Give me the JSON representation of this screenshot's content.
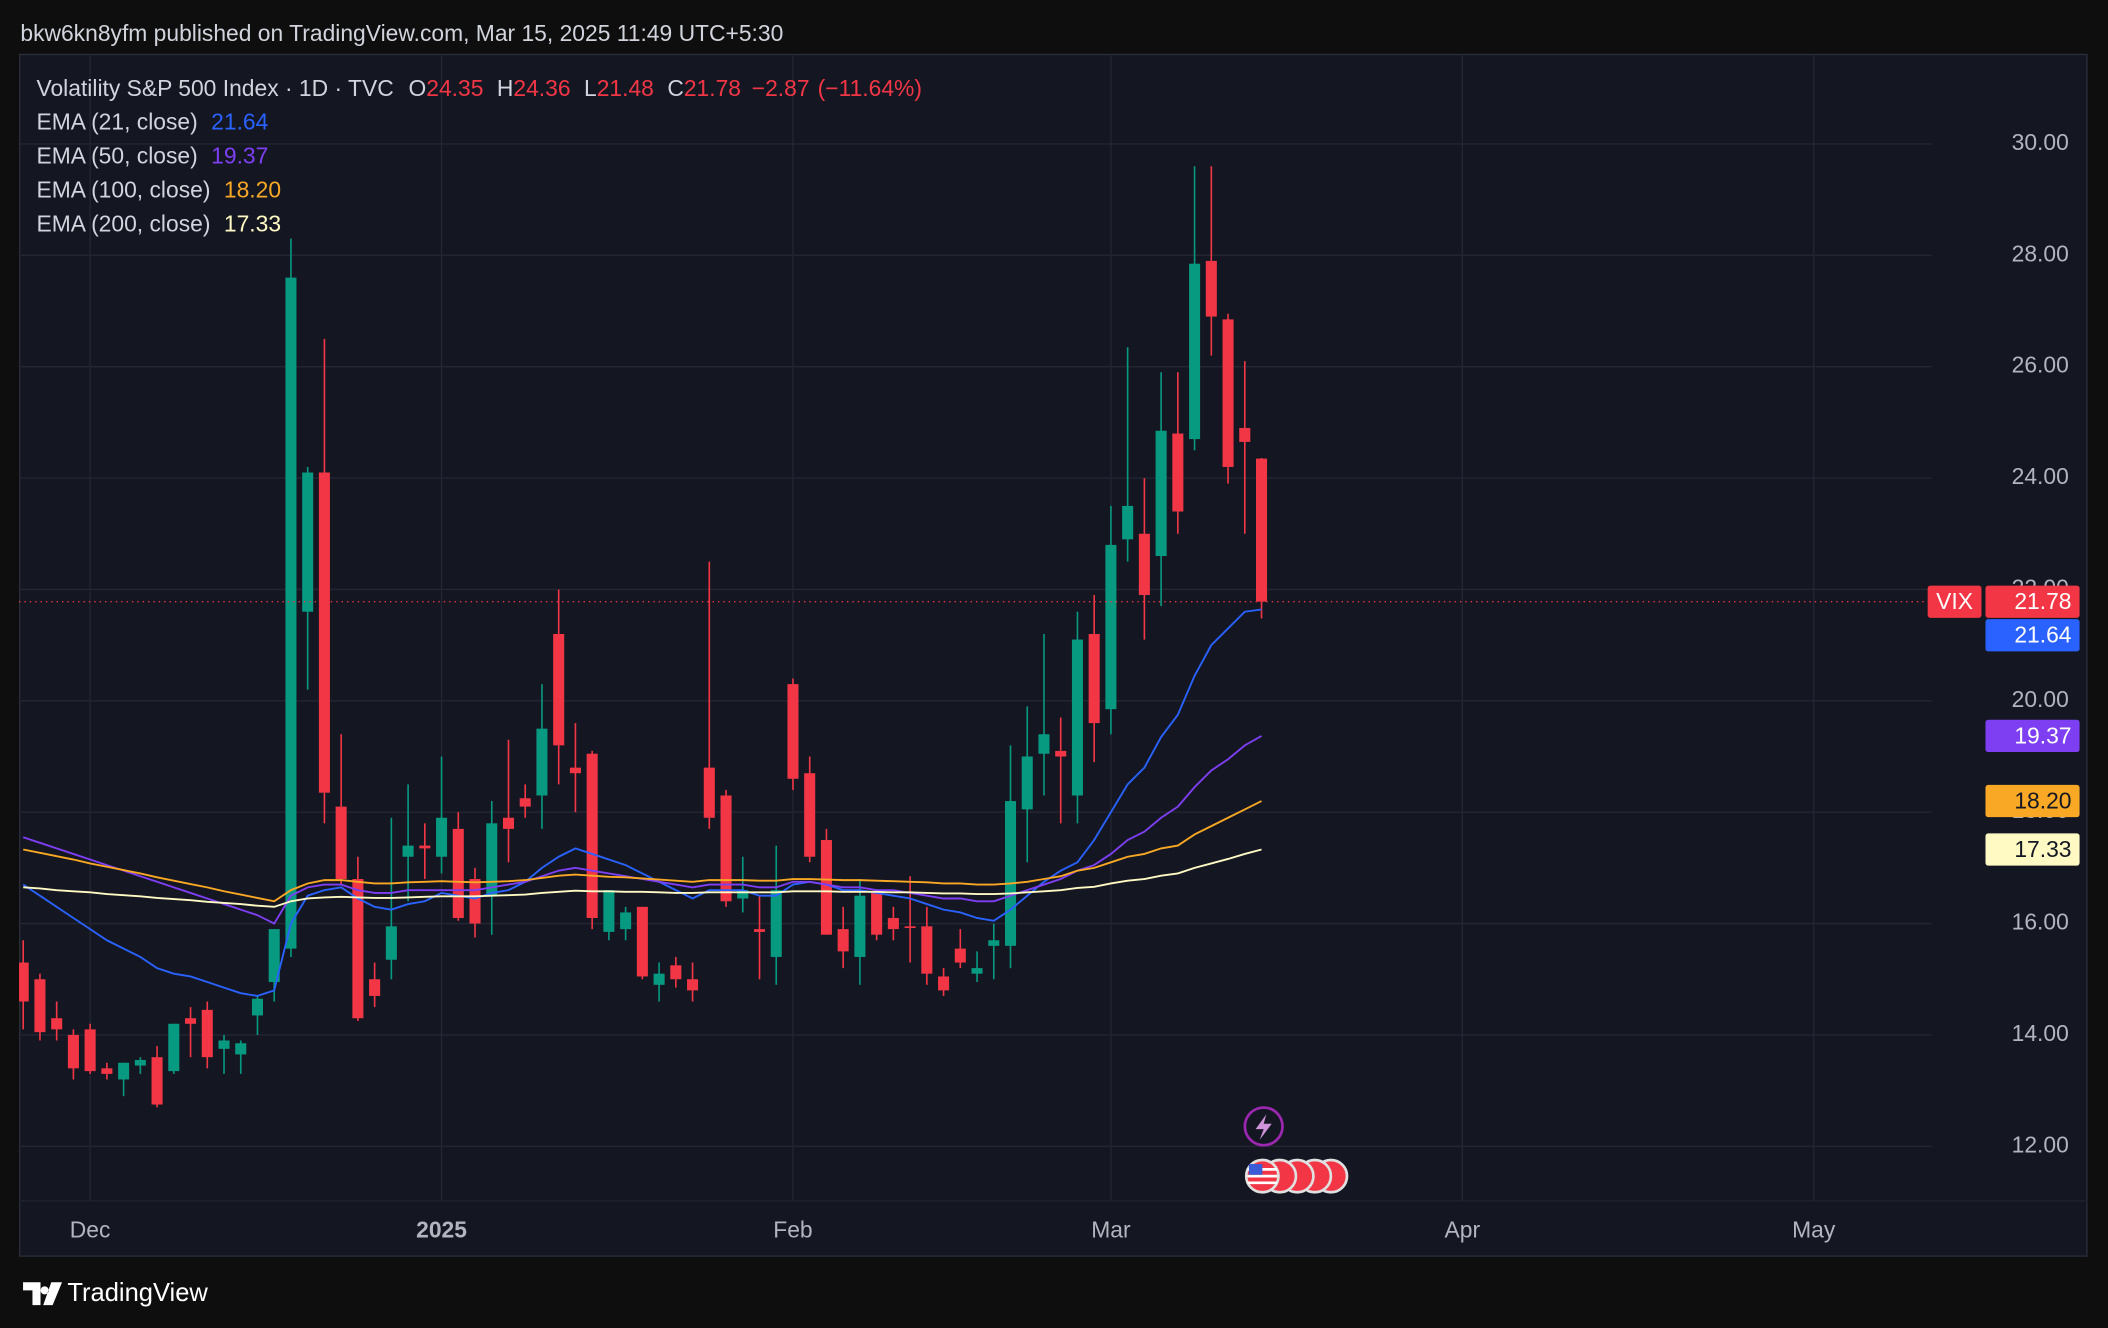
{
  "header": {
    "attribution": "bkw6kn8yfm published on TradingView.com, Mar 15, 2025 11:49 UTC+5:30"
  },
  "footer": {
    "brand": "TradingView"
  },
  "chart_data": {
    "type": "candlestick",
    "title": "Volatility S&P 500 Index · 1D · TVC",
    "ohlc_labels": [
      "O",
      "H",
      "L",
      "C"
    ],
    "change": "−2.87",
    "change_pct": "(−11.64%)",
    "categories": [
      null,
      null,
      null,
      null,
      "Dec",
      null,
      null,
      null,
      null,
      null,
      null,
      null,
      null,
      null,
      null,
      null,
      null,
      null,
      null,
      null,
      null,
      null,
      null,
      null,
      null,
      "2025",
      null,
      null,
      null,
      null,
      null,
      null,
      null,
      null,
      null,
      null,
      null,
      null,
      null,
      null,
      null,
      null,
      null,
      null,
      null,
      null,
      "Feb",
      null,
      null,
      null,
      null,
      null,
      null,
      null,
      null,
      null,
      null,
      null,
      null,
      null,
      null,
      null,
      null,
      null,
      null,
      "Mar",
      null,
      null,
      null,
      null,
      null,
      null,
      null,
      null,
      null,
      null,
      null,
      null,
      null,
      null,
      null,
      null,
      null,
      null,
      null,
      null,
      "Apr",
      null,
      null,
      null,
      null,
      null,
      null,
      null,
      null,
      null,
      null,
      null,
      null,
      null,
      null,
      null,
      null,
      null,
      null,
      null,
      null,
      "May",
      null,
      null,
      null,
      null,
      null,
      null
    ],
    "candles": {
      "name": "VIX",
      "last_label": "21.78",
      "up_color": "#089981",
      "down_color": "#f23645",
      "open": [
        15.3,
        15.0,
        14.3,
        14.0,
        14.1,
        13.4,
        13.2,
        13.45,
        13.6,
        13.35,
        14.3,
        14.45,
        13.75,
        13.65,
        14.35,
        14.95,
        15.55,
        21.6,
        24.1,
        18.1,
        16.8,
        15.0,
        15.35,
        17.2,
        17.4,
        17.2,
        17.7,
        16.8,
        16.5,
        17.9,
        18.25,
        18.3,
        21.2,
        18.8,
        19.05,
        15.85,
        15.9,
        16.3,
        14.9,
        15.25,
        15.0,
        18.8,
        18.3,
        16.45,
        15.9,
        15.4,
        20.3,
        18.7,
        17.5,
        15.9,
        15.4,
        16.55,
        16.1,
        15.95,
        15.95,
        15.05,
        15.55,
        15.1,
        15.6,
        15.6,
        18.05,
        19.05,
        19.1,
        18.3,
        21.2,
        19.85,
        22.9,
        23.0,
        22.6,
        24.8,
        24.7,
        27.9,
        26.85,
        24.9,
        24.35,
        null,
        null,
        null,
        null,
        null,
        null,
        null,
        null,
        null,
        null,
        null,
        null,
        null,
        null,
        null,
        null,
        null,
        null,
        null,
        null,
        null,
        null,
        null,
        null,
        null,
        null,
        null,
        null,
        null,
        null,
        null,
        null,
        null,
        null,
        null,
        null,
        null,
        null,
        null
      ],
      "high": [
        15.7,
        15.1,
        14.6,
        14.1,
        14.2,
        13.5,
        13.5,
        13.6,
        13.8,
        14.2,
        14.5,
        14.6,
        14.0,
        13.9,
        14.7,
        15.9,
        28.3,
        24.2,
        26.5,
        19.4,
        17.2,
        15.3,
        17.9,
        18.5,
        17.8,
        19.0,
        18.0,
        17.0,
        18.2,
        19.3,
        18.5,
        20.3,
        22.0,
        19.6,
        19.1,
        16.6,
        16.3,
        16.3,
        15.3,
        15.4,
        15.3,
        22.5,
        18.4,
        17.2,
        16.5,
        17.4,
        20.4,
        19.0,
        17.7,
        16.3,
        16.8,
        16.6,
        16.3,
        16.85,
        16.3,
        15.2,
        15.9,
        15.5,
        16.0,
        19.2,
        19.9,
        21.2,
        19.7,
        21.6,
        21.9,
        23.5,
        26.35,
        24.0,
        25.9,
        25.9,
        29.6,
        29.6,
        26.95,
        26.1,
        24.36,
        null,
        null,
        null,
        null,
        null,
        null,
        null,
        null,
        null,
        null,
        null,
        null,
        null,
        null,
        null,
        null,
        null,
        null,
        null,
        null,
        null,
        null,
        null,
        null,
        null,
        null,
        null,
        null,
        null,
        null,
        null,
        null,
        null,
        null,
        null,
        null,
        null,
        null,
        null
      ],
      "low": [
        14.1,
        13.9,
        13.9,
        13.2,
        13.3,
        13.2,
        12.9,
        13.3,
        12.7,
        13.3,
        13.6,
        13.4,
        13.3,
        13.3,
        14.0,
        14.6,
        15.4,
        20.2,
        17.8,
        16.7,
        14.25,
        14.5,
        15.0,
        16.4,
        16.8,
        16.9,
        16.05,
        15.75,
        15.8,
        17.1,
        17.9,
        17.7,
        18.5,
        18.0,
        15.9,
        15.7,
        15.7,
        15.0,
        14.6,
        14.85,
        14.6,
        17.7,
        16.3,
        16.2,
        15.0,
        14.9,
        18.4,
        17.1,
        15.8,
        15.2,
        14.9,
        15.7,
        15.7,
        15.3,
        14.9,
        14.7,
        15.2,
        14.95,
        15.0,
        15.2,
        17.1,
        18.3,
        17.8,
        17.8,
        18.9,
        19.4,
        22.5,
        21.1,
        21.7,
        23.0,
        24.5,
        26.2,
        23.9,
        23.0,
        21.48,
        null,
        null,
        null,
        null,
        null,
        null,
        null,
        null,
        null,
        null,
        null,
        null,
        null,
        null,
        null,
        null,
        null,
        null,
        null,
        null,
        null,
        null,
        null,
        null,
        null,
        null,
        null,
        null,
        null,
        null,
        null,
        null,
        null,
        null,
        null,
        null,
        null,
        null,
        null
      ],
      "close": [
        14.6,
        14.05,
        14.1,
        13.4,
        13.35,
        13.3,
        13.5,
        13.55,
        12.75,
        14.2,
        14.2,
        13.6,
        13.9,
        13.85,
        14.65,
        15.9,
        27.6,
        24.1,
        18.35,
        16.8,
        14.3,
        14.7,
        15.95,
        17.4,
        17.35,
        17.9,
        16.1,
        16.0,
        17.8,
        17.7,
        18.1,
        19.5,
        19.2,
        18.7,
        16.1,
        16.6,
        16.2,
        15.05,
        15.1,
        15.0,
        14.8,
        17.9,
        16.4,
        16.6,
        15.85,
        16.6,
        18.6,
        17.2,
        15.8,
        15.5,
        16.5,
        15.8,
        15.9,
        15.92,
        15.1,
        14.8,
        15.3,
        15.2,
        15.7,
        18.2,
        19.0,
        19.4,
        19.0,
        21.1,
        19.6,
        22.8,
        23.5,
        21.9,
        24.85,
        23.4,
        27.85,
        26.9,
        24.2,
        24.65,
        21.78,
        null,
        null,
        null,
        null,
        null,
        null,
        null,
        null,
        null,
        null,
        null,
        null,
        null,
        null,
        null,
        null,
        null,
        null,
        null,
        null,
        null,
        null,
        null,
        null,
        null,
        null,
        null,
        null,
        null,
        null,
        null,
        null,
        null,
        null,
        null,
        null,
        null,
        null,
        null
      ]
    },
    "series": [
      {
        "name": "EMA (21, close)",
        "color": "#2962ff",
        "last_label": "21.64",
        "values": [
          16.7,
          16.5,
          16.3,
          16.1,
          15.9,
          15.7,
          15.55,
          15.4,
          15.2,
          15.1,
          15.05,
          14.95,
          14.85,
          14.75,
          14.7,
          14.8,
          16.0,
          16.5,
          16.6,
          16.65,
          16.45,
          16.3,
          16.25,
          16.35,
          16.4,
          16.55,
          16.5,
          16.45,
          16.55,
          16.6,
          16.75,
          17.0,
          17.2,
          17.35,
          17.25,
          17.15,
          17.05,
          16.9,
          16.75,
          16.6,
          16.45,
          16.6,
          16.6,
          16.6,
          16.5,
          16.5,
          16.7,
          16.75,
          16.7,
          16.6,
          16.6,
          16.55,
          16.5,
          16.45,
          16.35,
          16.25,
          16.2,
          16.1,
          16.05,
          16.25,
          16.5,
          16.75,
          16.95,
          17.1,
          17.5,
          18.0,
          18.5,
          18.8,
          19.35,
          19.75,
          20.45,
          21.0,
          21.3,
          21.6,
          21.64,
          null,
          null,
          null,
          null,
          null,
          null,
          null,
          null,
          null,
          null,
          null,
          null,
          null,
          null,
          null,
          null,
          null,
          null,
          null,
          null,
          null,
          null,
          null,
          null,
          null,
          null,
          null,
          null,
          null,
          null,
          null,
          null,
          null,
          null,
          null,
          null,
          null,
          null,
          null
        ]
      },
      {
        "name": "EMA (50, close)",
        "color": "#7e3ff2",
        "last_label": "19.37",
        "values": [
          17.55,
          17.45,
          17.35,
          17.25,
          17.15,
          17.05,
          16.95,
          16.85,
          16.75,
          16.65,
          16.55,
          16.45,
          16.35,
          16.25,
          16.15,
          16.0,
          16.5,
          16.65,
          16.7,
          16.7,
          16.6,
          16.55,
          16.55,
          16.6,
          16.6,
          16.6,
          16.6,
          16.6,
          16.65,
          16.7,
          16.75,
          16.85,
          16.95,
          17.0,
          16.95,
          16.9,
          16.85,
          16.8,
          16.75,
          16.7,
          16.65,
          16.7,
          16.7,
          16.7,
          16.65,
          16.65,
          16.75,
          16.75,
          16.7,
          16.65,
          16.65,
          16.6,
          16.6,
          16.55,
          16.5,
          16.45,
          16.45,
          16.4,
          16.4,
          16.5,
          16.6,
          16.7,
          16.8,
          16.95,
          17.05,
          17.25,
          17.5,
          17.65,
          17.9,
          18.1,
          18.45,
          18.75,
          18.95,
          19.2,
          19.37,
          null,
          null,
          null,
          null,
          null,
          null,
          null,
          null,
          null,
          null,
          null,
          null,
          null,
          null,
          null,
          null,
          null,
          null,
          null,
          null,
          null,
          null,
          null,
          null,
          null,
          null,
          null,
          null,
          null,
          null,
          null,
          null,
          null,
          null,
          null,
          null,
          null,
          null,
          null
        ]
      },
      {
        "name": "EMA (100, close)",
        "color": "#f9a825",
        "last_label": "18.20",
        "values": [
          17.33,
          17.27,
          17.21,
          17.15,
          17.08,
          17.02,
          16.96,
          16.9,
          16.83,
          16.77,
          16.71,
          16.65,
          16.58,
          16.52,
          16.46,
          16.4,
          16.6,
          16.72,
          16.78,
          16.78,
          16.75,
          16.72,
          16.72,
          16.74,
          16.75,
          16.76,
          16.75,
          16.74,
          16.75,
          16.76,
          16.78,
          16.82,
          16.86,
          16.88,
          16.86,
          16.84,
          16.83,
          16.81,
          16.79,
          16.77,
          16.75,
          16.78,
          16.78,
          16.78,
          16.77,
          16.77,
          16.8,
          16.8,
          16.79,
          16.78,
          16.78,
          16.77,
          16.76,
          16.75,
          16.74,
          16.72,
          16.72,
          16.7,
          16.7,
          16.72,
          16.75,
          16.8,
          16.85,
          16.95,
          17.0,
          17.1,
          17.2,
          17.25,
          17.35,
          17.4,
          17.6,
          17.75,
          17.9,
          18.05,
          18.2,
          null,
          null,
          null,
          null,
          null,
          null,
          null,
          null,
          null,
          null,
          null,
          null,
          null,
          null,
          null,
          null,
          null,
          null,
          null,
          null,
          null,
          null,
          null,
          null,
          null,
          null,
          null,
          null,
          null,
          null,
          null,
          null,
          null,
          null,
          null,
          null,
          null,
          null,
          null
        ]
      },
      {
        "name": "EMA (200, close)",
        "color": "#fff9c4",
        "last_label": "17.33",
        "values": [
          16.65,
          16.63,
          16.6,
          16.58,
          16.56,
          16.53,
          16.51,
          16.49,
          16.46,
          16.44,
          16.42,
          16.39,
          16.37,
          16.35,
          16.32,
          16.3,
          16.4,
          16.45,
          16.47,
          16.48,
          16.47,
          16.46,
          16.46,
          16.47,
          16.48,
          16.49,
          16.49,
          16.49,
          16.5,
          16.51,
          16.52,
          16.55,
          16.57,
          16.59,
          16.58,
          16.58,
          16.57,
          16.57,
          16.56,
          16.55,
          16.55,
          16.56,
          16.56,
          16.56,
          16.56,
          16.56,
          16.58,
          16.58,
          16.58,
          16.57,
          16.57,
          16.57,
          16.56,
          16.56,
          16.55,
          16.54,
          16.54,
          16.53,
          16.53,
          16.54,
          16.56,
          16.58,
          16.6,
          16.64,
          16.66,
          16.72,
          16.77,
          16.8,
          16.86,
          16.9,
          17.0,
          17.08,
          17.16,
          17.25,
          17.33,
          null,
          null,
          null,
          null,
          null,
          null,
          null,
          null,
          null,
          null,
          null,
          null,
          null,
          null,
          null,
          null,
          null,
          null,
          null,
          null,
          null,
          null,
          null,
          null,
          null,
          null,
          null,
          null,
          null,
          null,
          null,
          null,
          null,
          null,
          null,
          null,
          null,
          null,
          null
        ]
      }
    ],
    "ylim": [
      11.03,
      31.62
    ],
    "yticks": [
      {
        "value": 12,
        "label": "12.00"
      },
      {
        "value": 14,
        "label": "14.00"
      },
      {
        "value": 16,
        "label": "16.00"
      },
      {
        "value": 18,
        "label": "18.00"
      },
      {
        "value": 20,
        "label": "20.00"
      },
      {
        "value": 22,
        "label": "22.00"
      },
      {
        "value": 24,
        "label": "24.00"
      },
      {
        "value": 26,
        "label": "26.00"
      },
      {
        "value": 28,
        "label": "28.00"
      },
      {
        "value": 30,
        "label": "30.00"
      }
    ],
    "grid": true
  }
}
